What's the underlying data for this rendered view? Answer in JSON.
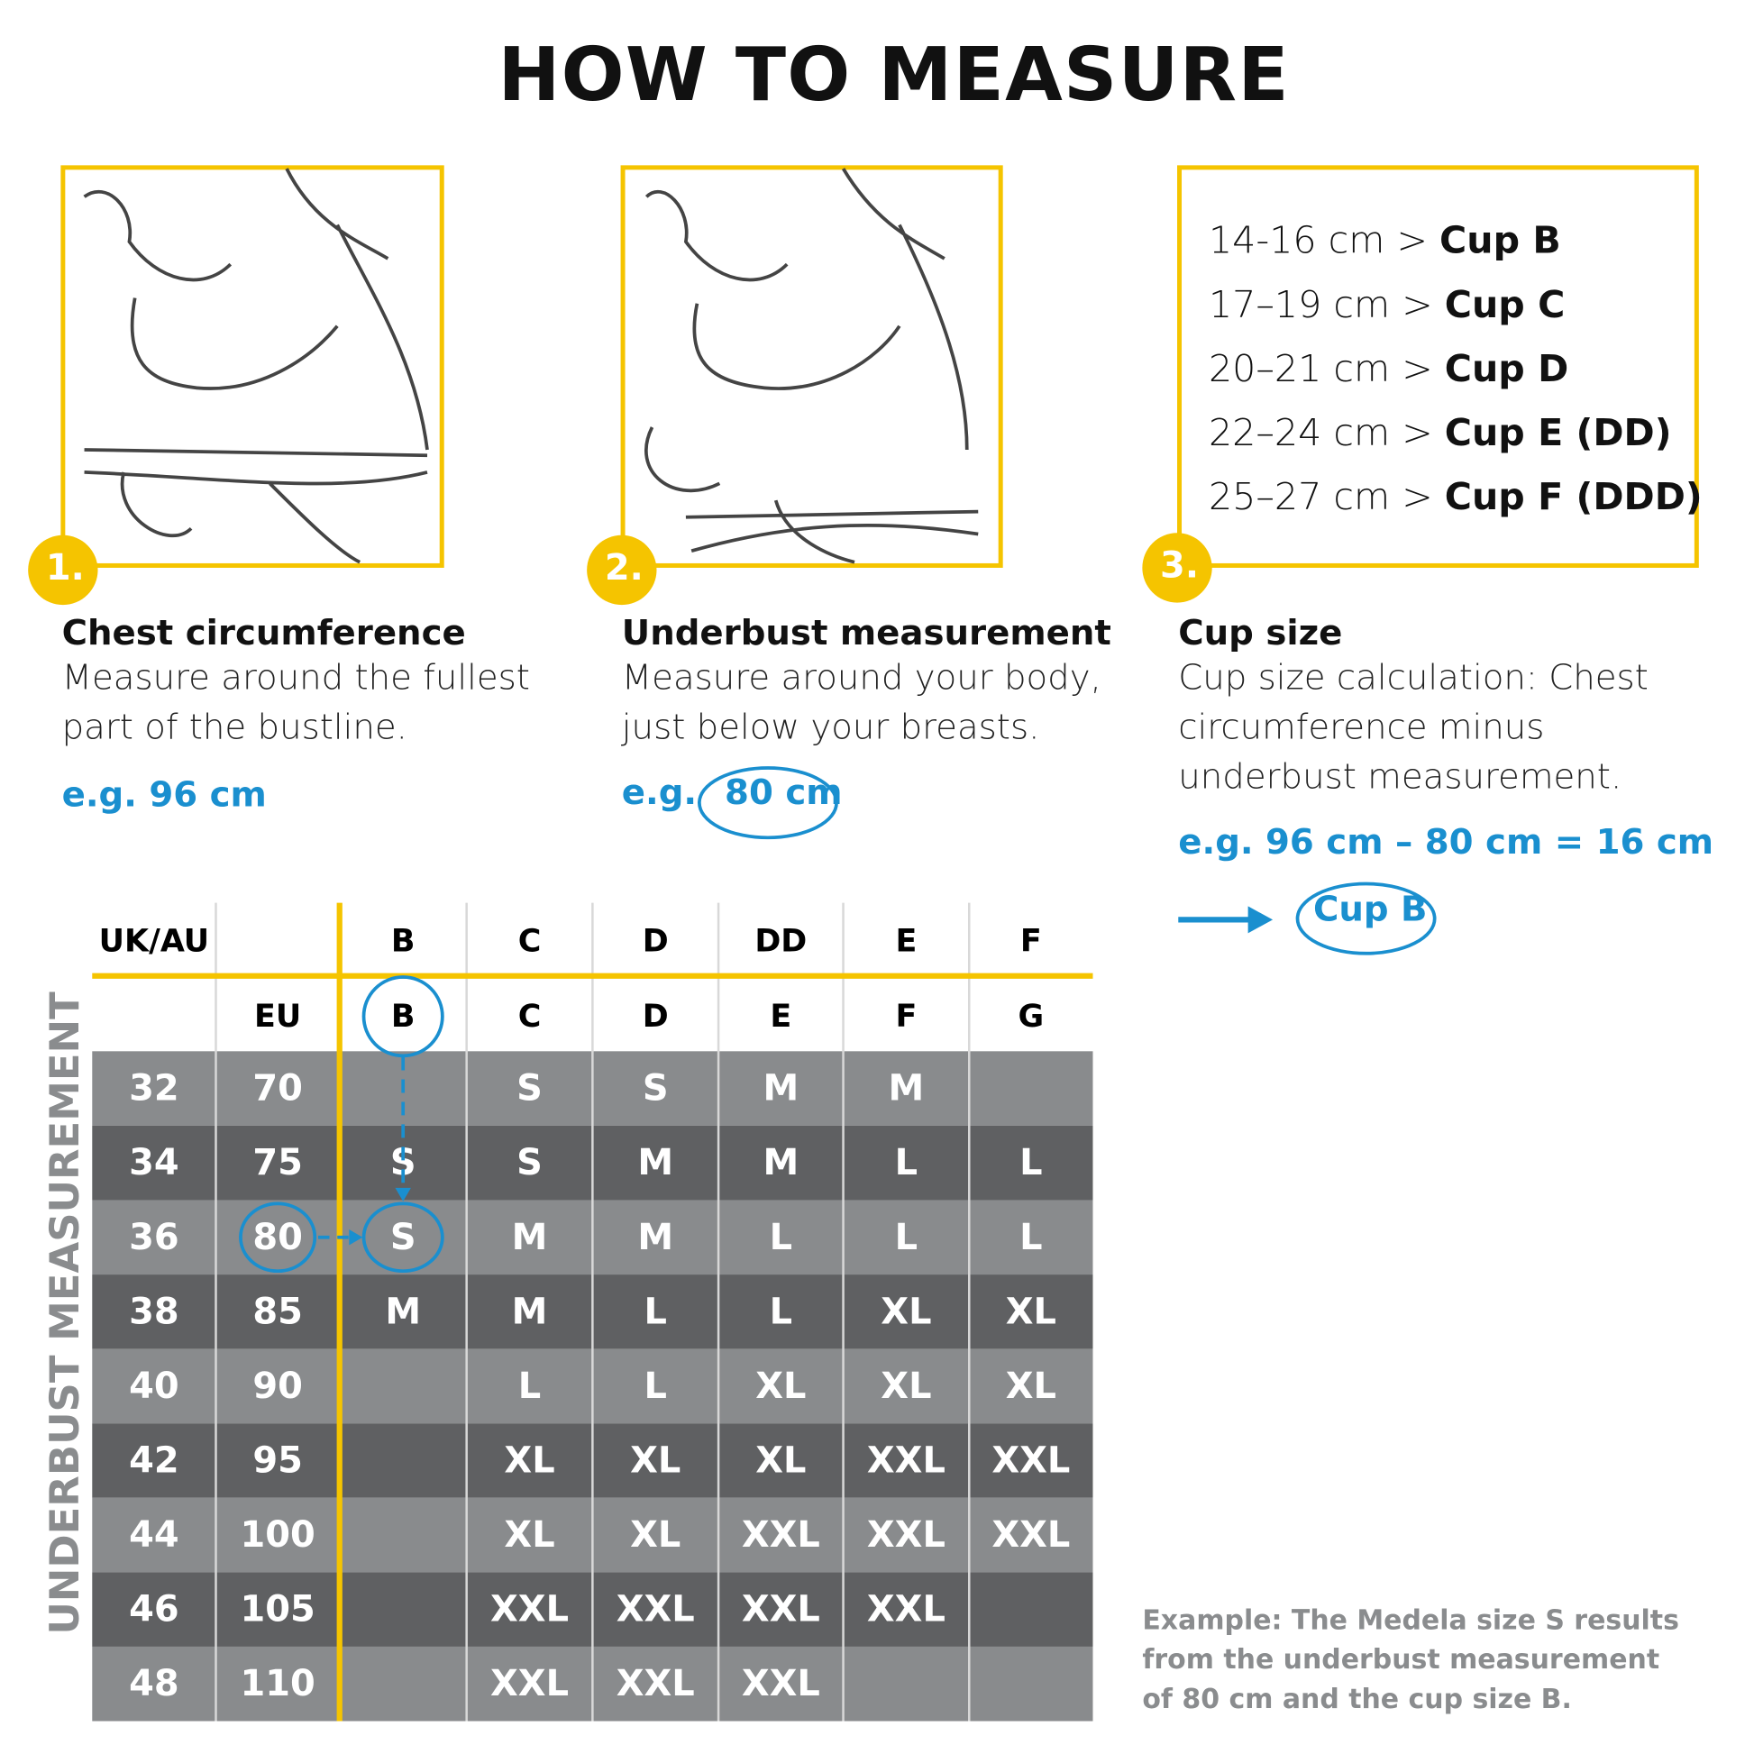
{
  "title": "HOW TO MEASURE",
  "steps": [
    {
      "number": "1.",
      "heading": "Chest circumference",
      "text": "Measure around the fullest part of the bustline.",
      "example": "e.g. 96 cm"
    },
    {
      "number": "2.",
      "heading": "Underbust measurement",
      "text": "Measure around your body, just below your breasts.",
      "example_prefix": "e.g.",
      "example_value": "80 cm"
    },
    {
      "number": "3.",
      "heading": "Cup size",
      "text": "Cup size calculation: Chest circumference minus underbust measurement.",
      "example": "e.g. 96 cm – 80 cm = 16 cm",
      "result": "Cup B"
    }
  ],
  "cup_ranges": [
    {
      "range": "14-16 cm >",
      "cup": "Cup B"
    },
    {
      "range": "17–19 cm >",
      "cup": "Cup C"
    },
    {
      "range": "20–21 cm >",
      "cup": "Cup D"
    },
    {
      "range": "22–24 cm >",
      "cup": "Cup E (DD)"
    },
    {
      "range": "25–27 cm >",
      "cup": "Cup F (DDD)"
    }
  ],
  "table": {
    "side_label": "UNDERBUST MEASUREMENT",
    "uk_label": "UK/AU",
    "eu_label": "EU",
    "uk_cups": [
      "B",
      "C",
      "D",
      "DD",
      "E",
      "F"
    ],
    "eu_cups": [
      "B",
      "C",
      "D",
      "E",
      "F",
      "G"
    ],
    "rows": [
      {
        "uk": 32,
        "eu": 70,
        "sizes": [
          null,
          "S",
          "S",
          "M",
          "M",
          null
        ]
      },
      {
        "uk": 34,
        "eu": 75,
        "sizes": [
          "S",
          "S",
          "M",
          "M",
          "L",
          "L"
        ]
      },
      {
        "uk": 36,
        "eu": 80,
        "sizes": [
          "S",
          "M",
          "M",
          "L",
          "L",
          "L"
        ]
      },
      {
        "uk": 38,
        "eu": 85,
        "sizes": [
          "M",
          "M",
          "L",
          "L",
          "XL",
          "XL"
        ]
      },
      {
        "uk": 40,
        "eu": 90,
        "sizes": [
          null,
          "L",
          "L",
          "XL",
          "XL",
          "XL"
        ]
      },
      {
        "uk": 42,
        "eu": 95,
        "sizes": [
          null,
          "XL",
          "XL",
          "XL",
          "XXL",
          "XXL"
        ]
      },
      {
        "uk": 44,
        "eu": 100,
        "sizes": [
          null,
          "XL",
          "XL",
          "XXL",
          "XXL",
          "XXL"
        ]
      },
      {
        "uk": 46,
        "eu": 105,
        "sizes": [
          null,
          "XXL",
          "XXL",
          "XXL",
          "XXL",
          null
        ]
      },
      {
        "uk": 48,
        "eu": 110,
        "sizes": [
          null,
          "XXL",
          "XXL",
          "XXL",
          null,
          null
        ]
      }
    ]
  },
  "note": "Example: The Medela size S results from the underbust measurement of 80 cm and the cup size B."
}
